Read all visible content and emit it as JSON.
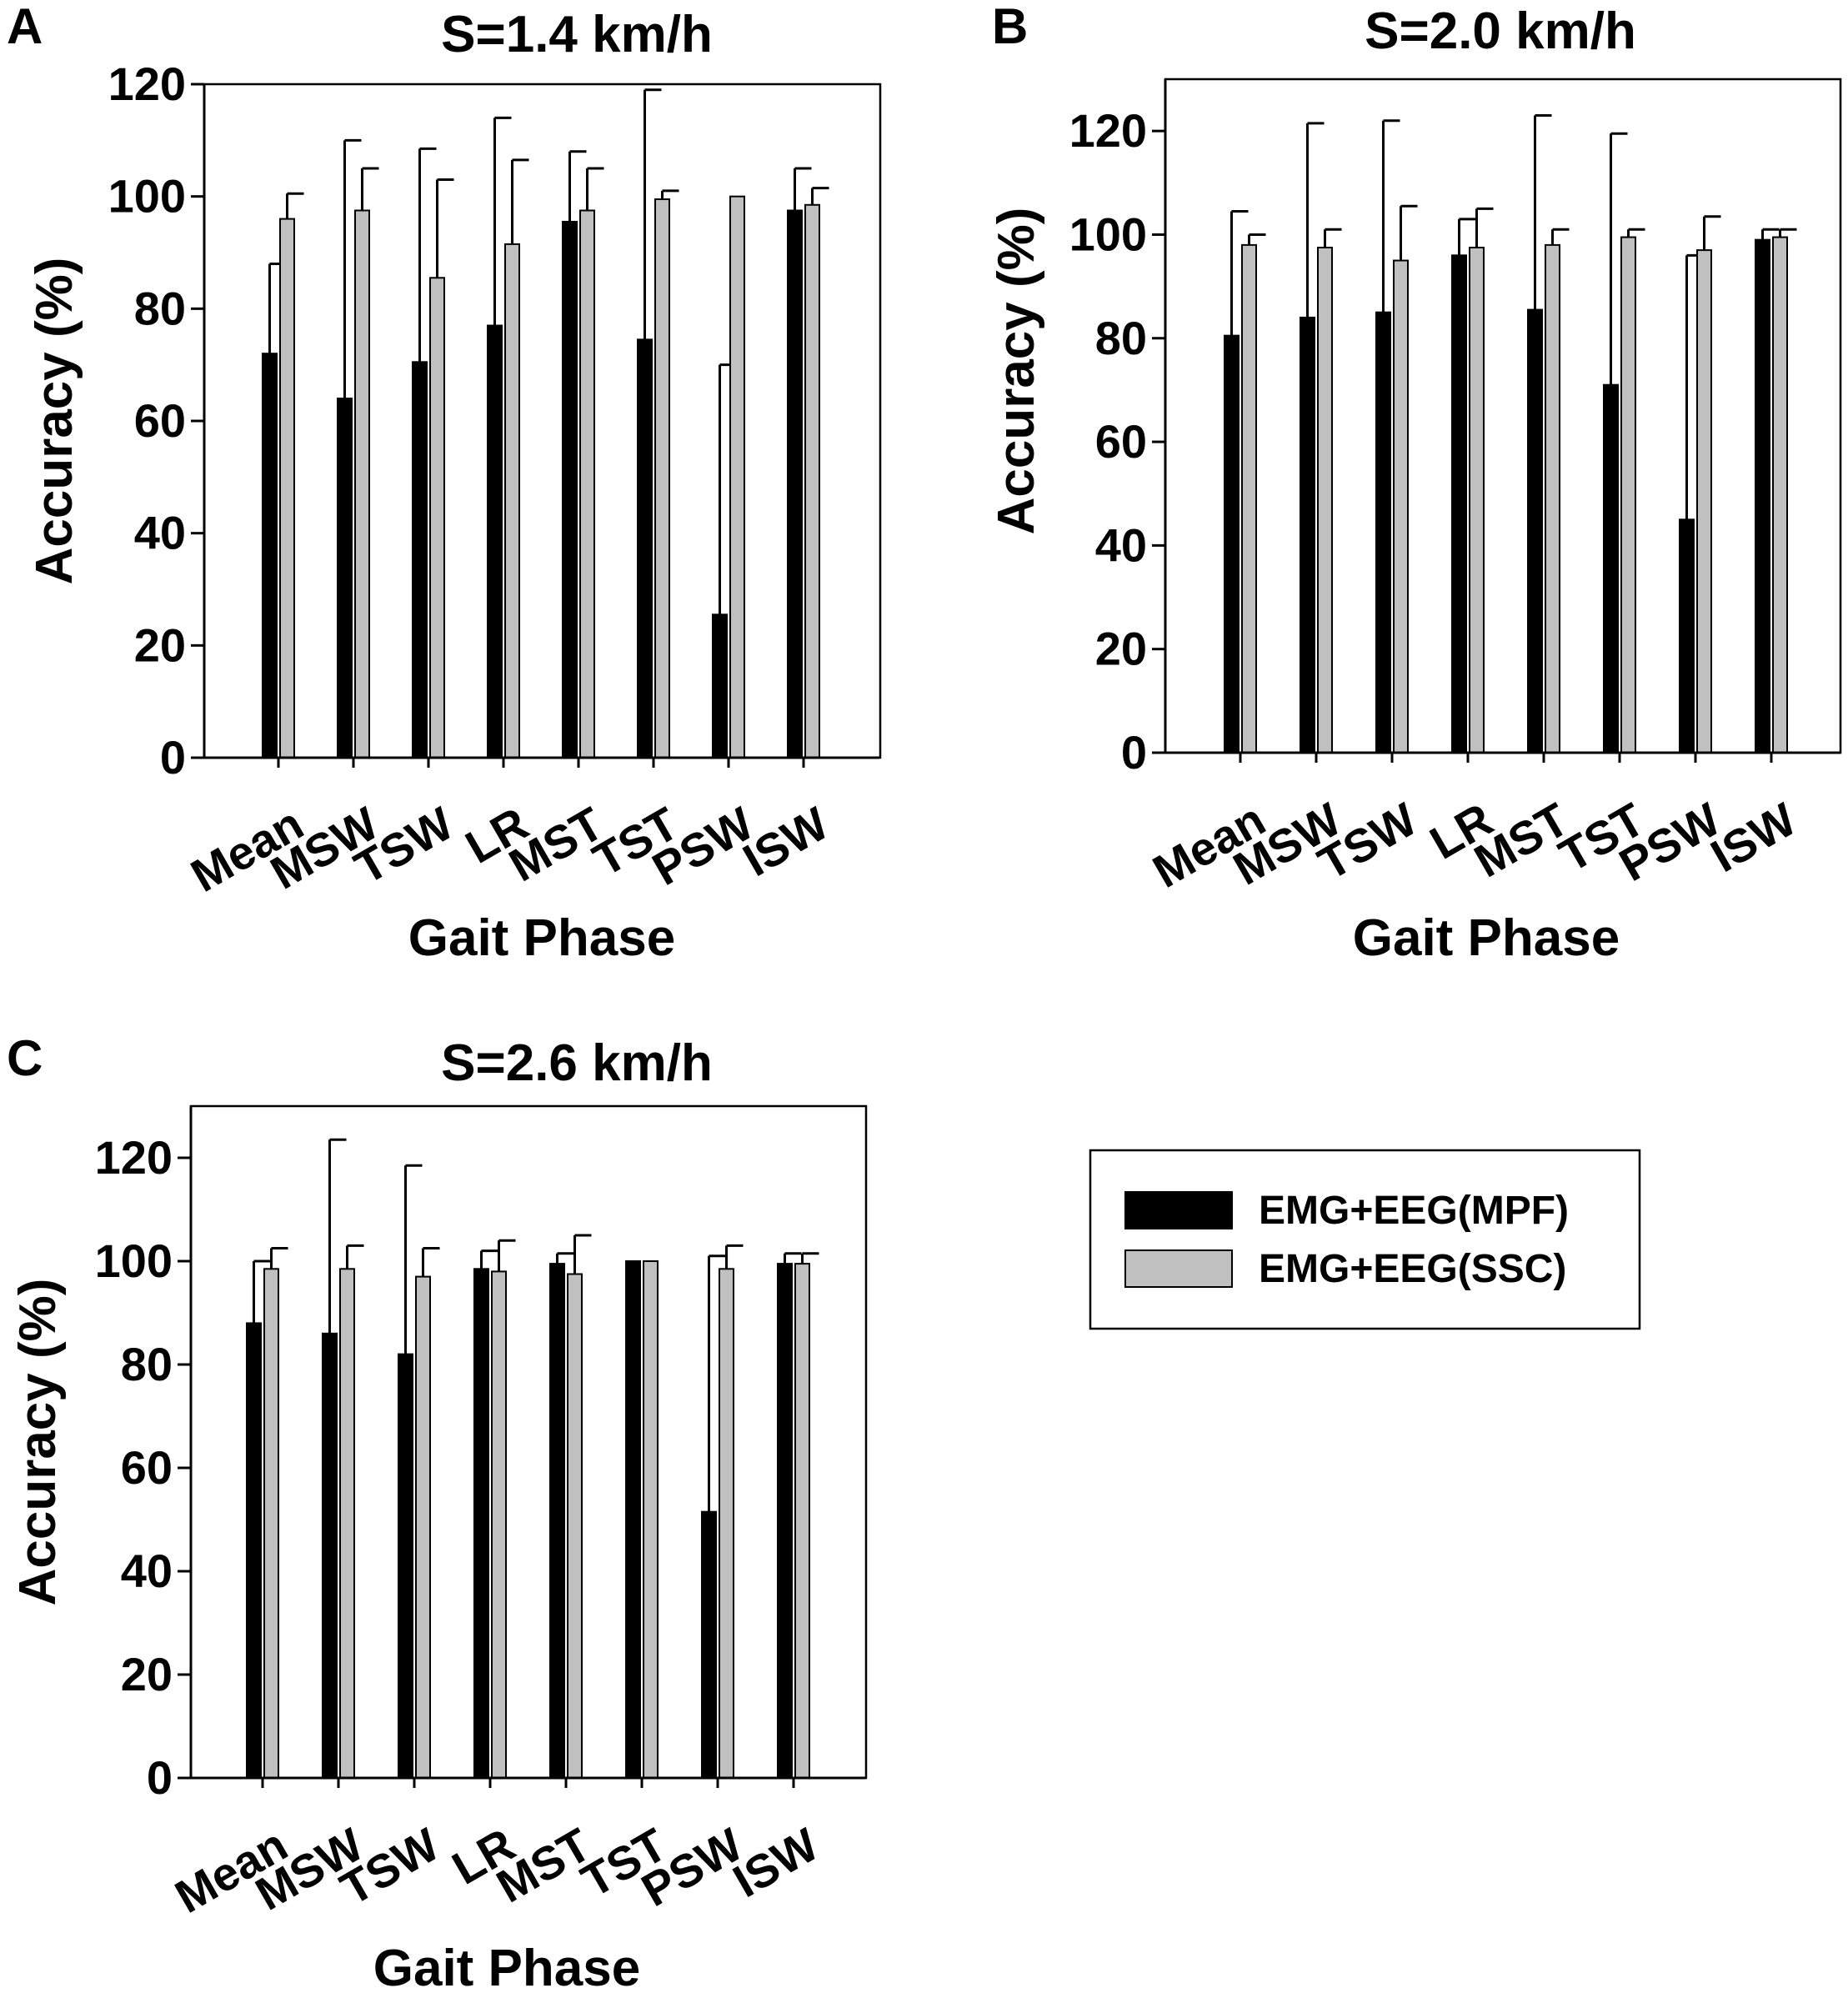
{
  "figure": {
    "background": "#ffffff"
  },
  "legend": {
    "entries": [
      {
        "label": "EMG+EEG(MPF)",
        "color": "#000000"
      },
      {
        "label": "EMG+EEG(SSC)",
        "color": "#c0c0c0"
      }
    ]
  },
  "chart_data": [
    {
      "panel": "A",
      "type": "bar",
      "title": "S=1.4 km/h",
      "xlabel": "Gait Phase",
      "ylabel": "Accuracy (%)",
      "ylim": [
        0,
        120
      ],
      "yticks": [
        0,
        20,
        40,
        60,
        80,
        100,
        120
      ],
      "categories": [
        "Mean",
        "MSW",
        "TSW",
        "LR",
        "MST",
        "TST",
        "PSW",
        "ISW"
      ],
      "series": [
        {
          "name": "EMG+EEG(MPF)",
          "color": "#000000",
          "values": [
            72,
            64,
            70.5,
            77,
            95.5,
            74.5,
            25.5,
            97.5
          ],
          "errors": [
            16,
            46,
            38,
            37,
            12.5,
            44.5,
            44.5,
            7.5
          ]
        },
        {
          "name": "EMG+EEG(SSC)",
          "color": "#c0c0c0",
          "values": [
            96,
            97.5,
            85.5,
            91.5,
            97.5,
            99.5,
            100,
            98.5
          ],
          "errors": [
            4.5,
            7.5,
            17.5,
            15,
            7.5,
            1.5,
            0,
            3
          ]
        }
      ]
    },
    {
      "panel": "B",
      "type": "bar",
      "title": "S=2.0 km/h",
      "xlabel": "Gait Phase",
      "ylabel": "Accuracy (%)",
      "ylim": [
        0,
        130
      ],
      "yticks": [
        0,
        20,
        40,
        60,
        80,
        100,
        120
      ],
      "categories": [
        "Mean",
        "MSW",
        "TSW",
        "LR",
        "MST",
        "TST",
        "PSW",
        "ISW"
      ],
      "series": [
        {
          "name": "EMG+EEG(MPF)",
          "color": "#000000",
          "values": [
            80.5,
            84,
            85,
            96,
            85.5,
            71,
            45,
            99
          ],
          "errors": [
            24,
            37.5,
            37,
            7,
            37.5,
            48.5,
            51,
            2
          ]
        },
        {
          "name": "EMG+EEG(SSC)",
          "color": "#c0c0c0",
          "values": [
            98,
            97.5,
            95,
            97.5,
            98,
            99.5,
            97,
            99.5
          ],
          "errors": [
            2,
            3.5,
            10.5,
            7.5,
            3,
            1.5,
            6.5,
            1.5
          ]
        }
      ]
    },
    {
      "panel": "C",
      "type": "bar",
      "title": "S=2.6 km/h",
      "xlabel": "Gait Phase",
      "ylabel": "Accuracy (%)",
      "ylim": [
        0,
        130
      ],
      "yticks": [
        0,
        20,
        40,
        60,
        80,
        100,
        120
      ],
      "categories": [
        "Mean",
        "MSW",
        "TSW",
        "LR",
        "MST",
        "TST",
        "PSW",
        "ISW"
      ],
      "series": [
        {
          "name": "EMG+EEG(MPF)",
          "color": "#000000",
          "values": [
            88,
            86,
            82,
            98.5,
            99.5,
            100,
            51.5,
            99.5
          ],
          "errors": [
            12,
            37.5,
            36.5,
            3.5,
            2,
            0,
            49.5,
            2
          ]
        },
        {
          "name": "EMG+EEG(SSC)",
          "color": "#c0c0c0",
          "values": [
            98.5,
            98.5,
            97,
            98,
            97.5,
            100,
            98.5,
            99.5
          ],
          "errors": [
            4,
            4.5,
            5.5,
            6,
            7.5,
            0,
            4.5,
            2
          ]
        }
      ]
    }
  ]
}
